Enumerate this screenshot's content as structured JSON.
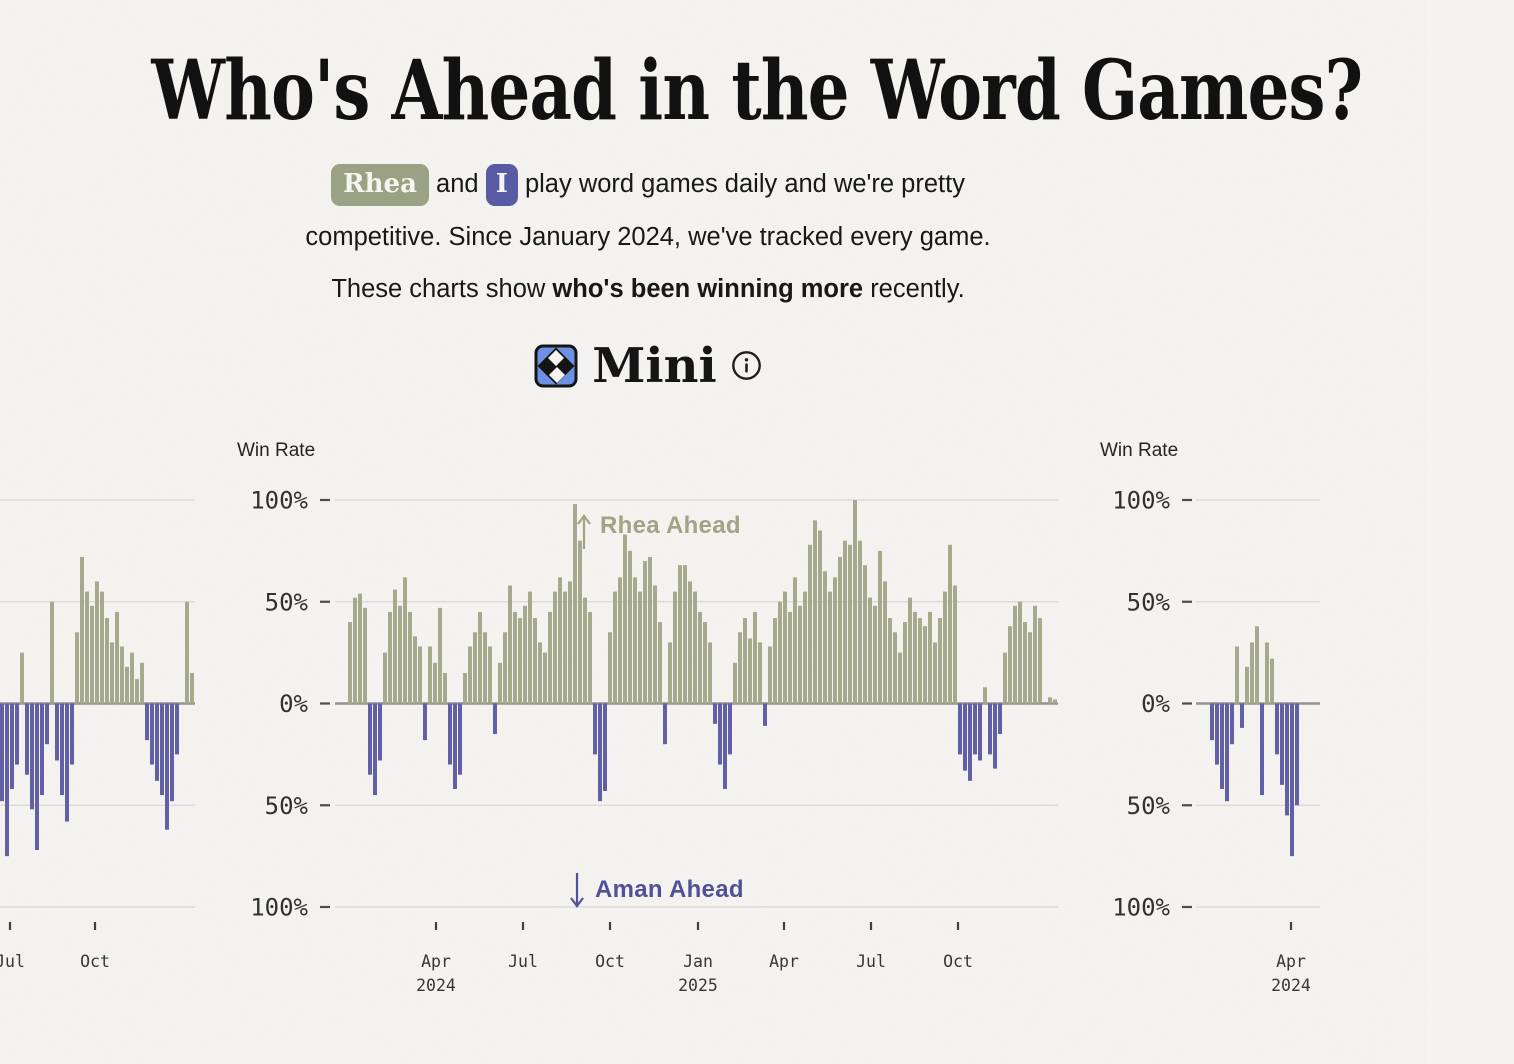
{
  "header": {
    "title": "Who's Ahead in the Word Games?",
    "intro": {
      "badge_rhea": "Rhea",
      "after_rhea": "and",
      "badge_i": "I",
      "line1_rest": "play word games daily and we're pretty",
      "line2": "competitive. Since January 2024, we've tracked every game.",
      "line3_prefix": "These charts show",
      "line3_bold": "who's been winning more",
      "line3_suffix": "recently."
    }
  },
  "section": {
    "title": "Mini",
    "icons": [
      "mini-crossword-icon",
      "info-icon"
    ]
  },
  "colors": {
    "background": "#F5F4F1",
    "bar_positive_green": "#A6AA8C",
    "bar_negative_purple": "#5F5DA6",
    "annotation_positive": "#9FA484",
    "annotation_negative": "#4E4E99",
    "badge_rhea": "#9AA183",
    "badge_i": "#5659A3",
    "gridline": "#D9D7D3",
    "zero_line": "#93928C",
    "axis_tick_text": "#333333",
    "y_label_text": "#2E2E2E",
    "win_rate_text": "#1F1F1F",
    "mini_icon_blue": "#6B90E4"
  },
  "players": {
    "positive": "Rhea",
    "negative": "Aman"
  },
  "chart_data": [
    {
      "type": "bar",
      "name": "mini-chart-left-partial",
      "description": "Partially visible adjacent win-rate chart (left of carousel); diverging daily win-rate differential, green = Rhea ahead, purple = Aman ahead",
      "ylim": [
        -100,
        100
      ],
      "grid_values": [
        100,
        50,
        0,
        -50,
        -100
      ],
      "show_yaxis": false,
      "xticks": [
        {
          "label": "Jul",
          "x": 10
        },
        {
          "label": "Oct",
          "x": 95
        }
      ],
      "values": [
        -48,
        -75,
        -42,
        -30,
        25,
        -35,
        -52,
        -72,
        -45,
        -20,
        50,
        -28,
        -45,
        -58,
        -30,
        35,
        72,
        55,
        48,
        60,
        55,
        42,
        30,
        45,
        28,
        18,
        25,
        12,
        20,
        -18,
        -30,
        -38,
        -45,
        -62,
        -48,
        -25,
        0,
        50,
        15
      ],
      "layout": {
        "plot_left": -30,
        "plot_right": 195,
        "x0": 0,
        "pitch": 5,
        "barw": 4
      }
    },
    {
      "type": "bar",
      "name": "mini-chart-main",
      "description": "Mini crossword win-rate differential, Jan 2024 through latest; green bars above zero = Rhea ahead (%), purple bars below zero = Aman ahead (%)",
      "ylabel": "Win Rate",
      "ylim": [
        -100,
        100
      ],
      "grid_values": [
        100,
        50,
        0,
        -50,
        -100
      ],
      "show_yaxis": true,
      "yticks": [
        {
          "v": 100,
          "label": "100%"
        },
        {
          "v": 50,
          "label": "50%"
        },
        {
          "v": 0,
          "label": "0%"
        },
        {
          "v": -50,
          "label": "50%"
        },
        {
          "v": -100,
          "label": "100%"
        }
      ],
      "annotations": {
        "up": {
          "symbol": "↑",
          "text": "Rhea Ahead"
        },
        "down": {
          "symbol": "↓",
          "text": "Aman Ahead"
        }
      },
      "xticks": [
        {
          "label": "Apr",
          "year": "2024",
          "x": 436
        },
        {
          "label": "Jul",
          "x": 523
        },
        {
          "label": "Oct",
          "x": 610
        },
        {
          "label": "Jan",
          "year": "2025",
          "x": 698
        },
        {
          "label": "Apr",
          "x": 784
        },
        {
          "label": "Jul",
          "x": 871
        },
        {
          "label": "Oct",
          "x": 958
        }
      ],
      "values": [
        40,
        52,
        54,
        47,
        -35,
        -45,
        -28,
        25,
        45,
        56,
        48,
        62,
        45,
        33,
        28,
        -18,
        28,
        20,
        47,
        15,
        -30,
        -42,
        -35,
        15,
        28,
        35,
        45,
        35,
        28,
        -15,
        20,
        35,
        58,
        45,
        42,
        48,
        55,
        42,
        30,
        25,
        45,
        55,
        62,
        55,
        60,
        98,
        80,
        52,
        45,
        -25,
        -48,
        -43,
        35,
        55,
        62,
        83,
        75,
        62,
        55,
        70,
        72,
        58,
        40,
        -20,
        30,
        55,
        68,
        68,
        60,
        55,
        45,
        40,
        30,
        -10,
        -30,
        -42,
        -25,
        20,
        35,
        42,
        32,
        45,
        30,
        -11,
        28,
        42,
        50,
        55,
        45,
        62,
        48,
        55,
        78,
        90,
        85,
        65,
        55,
        62,
        72,
        80,
        78,
        100,
        80,
        68,
        52,
        48,
        75,
        60,
        42,
        35,
        25,
        40,
        52,
        45,
        42,
        38,
        45,
        30,
        42,
        55,
        78,
        58,
        -25,
        -33,
        -38,
        -25,
        -28,
        8,
        -25,
        -32,
        -15,
        25,
        38,
        48,
        50,
        40,
        35,
        48,
        42,
        0,
        3,
        2
      ],
      "layout": {
        "plot_left": 335,
        "plot_right": 1058,
        "x0": 348,
        "pitch": 5,
        "barw": 4,
        "yaxis_x": 308,
        "winrate_x": 237,
        "ann_up": {
          "arrow_x": 584,
          "text_x": 600,
          "text_baseline": 103,
          "arrow_top": 86,
          "arrow_bottom": 119
        },
        "ann_down": {
          "arrow_x": 577,
          "text_x": 595,
          "text_baseline": 467,
          "arrow_top": 443,
          "arrow_bottom": 476
        }
      }
    },
    {
      "type": "bar",
      "name": "mini-chart-right-partial",
      "description": "Partially visible adjacent win-rate chart (right of carousel); early 2024 shown, mostly purple (Aman ahead)",
      "ylabel": "Win Rate",
      "ylim": [
        -100,
        100
      ],
      "grid_values": [
        100,
        50,
        0,
        -50,
        -100
      ],
      "show_yaxis": true,
      "yticks": [
        {
          "v": 100,
          "label": "100%"
        },
        {
          "v": 50,
          "label": "50%"
        },
        {
          "v": 0,
          "label": "0%"
        },
        {
          "v": -50,
          "label": "50%"
        },
        {
          "v": -100,
          "label": "100%"
        }
      ],
      "xticks": [
        {
          "label": "Apr",
          "year": "2024",
          "x": 1291
        }
      ],
      "values": [
        -18,
        -30,
        -42,
        -48,
        -20,
        28,
        -12,
        18,
        30,
        38,
        -45,
        30,
        22,
        -25,
        -40,
        -55,
        -75,
        -50
      ],
      "layout": {
        "plot_left": 1196,
        "plot_right": 1320,
        "x0": 1210,
        "pitch": 5,
        "barw": 4,
        "yaxis_x": 1170,
        "winrate_x": 1100
      }
    }
  ]
}
